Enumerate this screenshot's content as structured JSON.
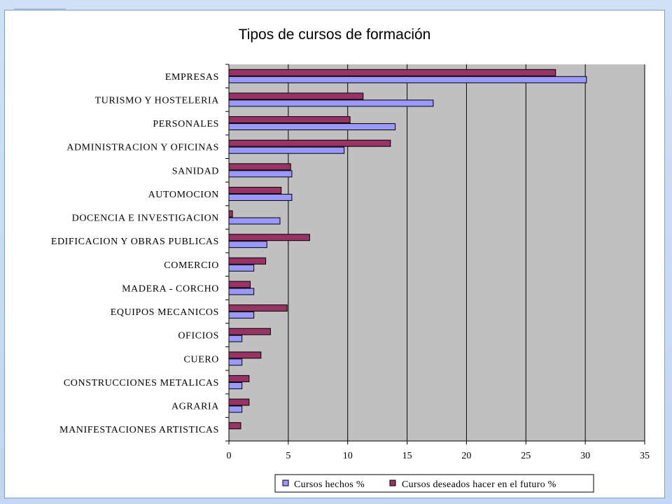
{
  "chart_data": {
    "type": "bar",
    "orientation": "horizontal",
    "title": "Tipos de cursos de formación",
    "categories": [
      "EMPRESAS",
      "TURISMO Y HOSTELERIA",
      "PERSONALES",
      "ADMINISTRACION Y OFICINAS",
      "SANIDAD",
      "AUTOMOCION",
      "DOCENCIA E INVESTIGACION",
      "EDIFICACION Y OBRAS PUBLICAS",
      "COMERCIO",
      "MADERA - CORCHO",
      "EQUIPOS MECANICOS",
      "OFICIOS",
      "CUERO",
      "CONSTRUCCIONES METALICAS",
      "AGRARIA",
      "MANIFESTACIONES ARTISTICAS"
    ],
    "series": [
      {
        "name": "Cursos hechos %",
        "color": "#9999ff",
        "values": [
          30.1,
          17.2,
          14.0,
          9.7,
          5.3,
          5.3,
          4.3,
          3.2,
          2.1,
          2.1,
          2.1,
          1.1,
          1.1,
          1.1,
          1.1,
          0
        ]
      },
      {
        "name": "Cursos deseados hacer en el futuro %",
        "color": "#993366",
        "values": [
          27.5,
          11.3,
          10.2,
          13.6,
          5.2,
          4.4,
          0.3,
          6.8,
          3.1,
          1.8,
          4.9,
          3.5,
          2.7,
          1.7,
          1.7,
          1.0
        ]
      }
    ],
    "xlim": [
      0,
      35
    ],
    "xticks": [
      "0",
      "5",
      "10",
      "15",
      "20",
      "25",
      "30",
      "35"
    ],
    "xlabel": "",
    "ylabel": "",
    "grid": "vertical major gridlines",
    "plot_background": "#c0c0c0",
    "legend_position": "bottom-right"
  }
}
